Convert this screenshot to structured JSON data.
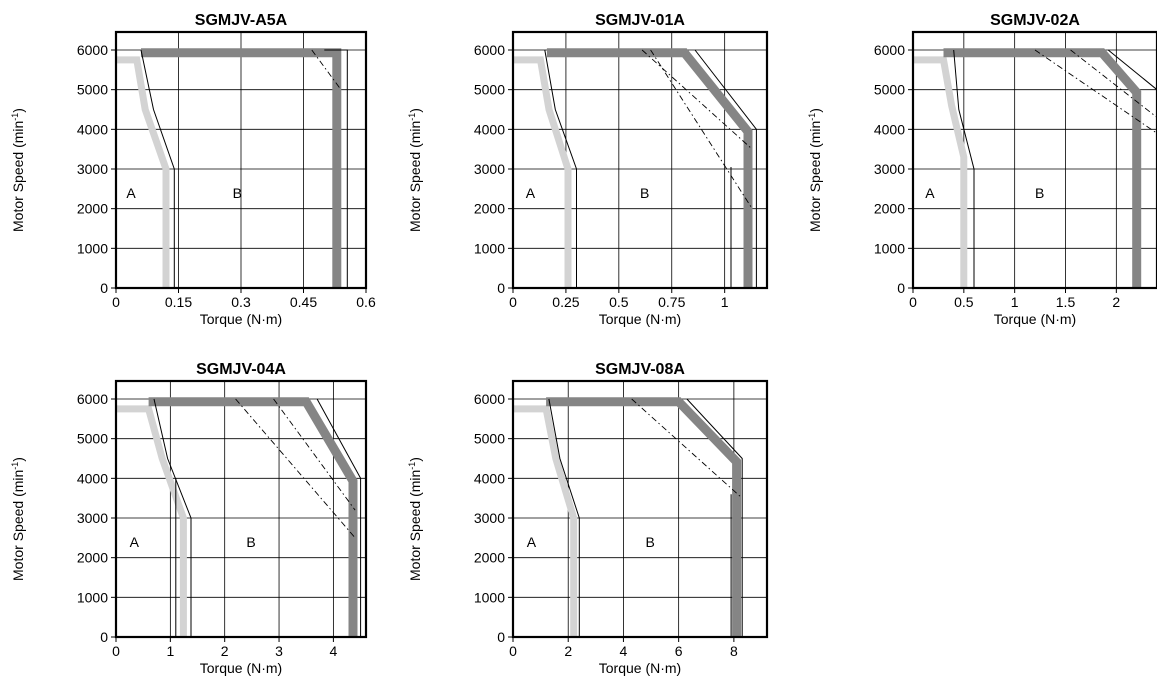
{
  "chart_data": [
    {
      "type": "line",
      "title": "SGMJV-A5A",
      "xlabel": "Torque (N·m)",
      "ylabel_base": "Motor Speed (min",
      "ylabel_sup": "-1",
      "ylabel_end": ")",
      "xlim": [
        0,
        0.6
      ],
      "ylim": [
        0,
        6000
      ],
      "x_ticks": [
        "0",
        "0.15",
        "0.3",
        "0.45",
        "0.6"
      ],
      "x_tick_values": [
        0,
        0.15,
        0.3,
        0.45,
        0.6
      ],
      "x_grid": [
        0.15,
        0.3,
        0.45,
        0.6
      ],
      "y_ticks": [
        "0",
        "1000",
        "2000",
        "3000",
        "4000",
        "5000",
        "6000"
      ],
      "y_tick_values": [
        0,
        1000,
        2000,
        3000,
        4000,
        5000,
        6000
      ],
      "regions": [
        {
          "label": "A",
          "x": 0.025,
          "y": 2400
        },
        {
          "label": "B",
          "x": 0.28,
          "y": 2400
        }
      ],
      "series": [
        {
          "style": "continuous-band",
          "points": [
            [
              0.12,
              0
            ],
            [
              0.12,
              3000
            ],
            [
              0.07,
              4500
            ],
            [
              0.05,
              5750
            ],
            [
              0,
              5750
            ]
          ]
        },
        {
          "style": "instantaneous-band",
          "points": [
            [
              0.06,
              5930
            ],
            [
              0.53,
              5930
            ],
            [
              0.53,
              0
            ]
          ]
        },
        {
          "style": "thin",
          "points": [
            [
              0.14,
              0
            ],
            [
              0.14,
              3000
            ],
            [
              0.09,
              4500
            ],
            [
              0.06,
              6000
            ]
          ]
        },
        {
          "style": "thin",
          "points": [
            [
              0.5,
              6000
            ],
            [
              0.555,
              6000
            ],
            [
              0.555,
              0
            ]
          ]
        },
        {
          "style": "dash",
          "points": [
            [
              0.47,
              6000
            ],
            [
              0.54,
              5000
            ]
          ]
        }
      ]
    },
    {
      "type": "line",
      "title": "SGMJV-01A",
      "xlabel": "Torque (N·m)",
      "ylabel_base": "Motor Speed (min",
      "ylabel_sup": "-1",
      "ylabel_end": ")",
      "xlim": [
        0,
        1.2
      ],
      "ylim": [
        0,
        6000
      ],
      "x_ticks": [
        "0",
        "0.25",
        "0.5",
        "0.75",
        "1"
      ],
      "x_tick_values": [
        0,
        0.25,
        0.5,
        0.75,
        1
      ],
      "x_grid": [
        0.25,
        0.5,
        0.75,
        1
      ],
      "y_ticks": [
        "0",
        "1000",
        "2000",
        "3000",
        "4000",
        "5000",
        "6000"
      ],
      "y_tick_values": [
        0,
        1000,
        2000,
        3000,
        4000,
        5000,
        6000
      ],
      "regions": [
        {
          "label": "A",
          "x": 0.06,
          "y": 2400
        },
        {
          "label": "B",
          "x": 0.6,
          "y": 2400
        }
      ],
      "series": [
        {
          "style": "continuous-band",
          "points": [
            [
              0.26,
              0
            ],
            [
              0.26,
              3000
            ],
            [
              0.17,
              4500
            ],
            [
              0.13,
              5750
            ],
            [
              0,
              5750
            ]
          ]
        },
        {
          "style": "instantaneous-band",
          "points": [
            [
              0.16,
              5930
            ],
            [
              0.81,
              5930
            ],
            [
              1.11,
              3940
            ],
            [
              1.11,
              0
            ]
          ]
        },
        {
          "style": "thin",
          "points": [
            [
              0.3,
              0
            ],
            [
              0.3,
              3000
            ],
            [
              0.2,
              4500
            ],
            [
              0.15,
              6000
            ]
          ]
        },
        {
          "style": "thin",
          "points": [
            [
              0.86,
              6000
            ],
            [
              1.15,
              4000
            ],
            [
              1.15,
              0
            ]
          ]
        },
        {
          "style": "thin",
          "points": [
            [
              1.03,
              0
            ],
            [
              1.03,
              3050
            ]
          ]
        },
        {
          "style": "dash",
          "points": [
            [
              0.61,
              6000
            ],
            [
              1.13,
              3500
            ]
          ]
        },
        {
          "style": "dash",
          "points": [
            [
              0.65,
              6000
            ],
            [
              1.13,
              2000
            ]
          ]
        }
      ]
    },
    {
      "type": "line",
      "title": "SGMJV-02A",
      "xlabel": "Torque (N·m)",
      "ylabel_base": "Motor Speed (min",
      "ylabel_sup": "-1",
      "ylabel_end": ")",
      "xlim": [
        0,
        2.4
      ],
      "ylim": [
        0,
        6000
      ],
      "x_ticks": [
        "0",
        "0.5",
        "1",
        "1.5",
        "2"
      ],
      "x_tick_values": [
        0,
        0.5,
        1,
        1.5,
        2
      ],
      "x_grid": [
        0.5,
        1,
        1.5,
        2
      ],
      "y_ticks": [
        "0",
        "1000",
        "2000",
        "3000",
        "4000",
        "5000",
        "6000"
      ],
      "y_tick_values": [
        0,
        1000,
        2000,
        3000,
        4000,
        5000,
        6000
      ],
      "regions": [
        {
          "label": "A",
          "x": 0.12,
          "y": 2400
        },
        {
          "label": "B",
          "x": 1.2,
          "y": 2400
        }
      ],
      "series": [
        {
          "style": "continuous-band",
          "points": [
            [
              0.5,
              0
            ],
            [
              0.5,
              3300
            ],
            [
              0.38,
              4600
            ],
            [
              0.3,
              5750
            ],
            [
              0,
              5750
            ]
          ]
        },
        {
          "style": "instantaneous-band",
          "points": [
            [
              0.3,
              5930
            ],
            [
              1.86,
              5930
            ],
            [
              2.2,
              4930
            ],
            [
              2.2,
              0
            ]
          ]
        },
        {
          "style": "thin",
          "points": [
            [
              0.6,
              0
            ],
            [
              0.6,
              3000
            ],
            [
              0.45,
              4500
            ],
            [
              0.4,
              6000
            ]
          ]
        },
        {
          "style": "thin",
          "points": [
            [
              1.92,
              6000
            ],
            [
              2.4,
              5000
            ]
          ]
        },
        {
          "style": "dash",
          "points": [
            [
              1.2,
              6000
            ],
            [
              2.4,
              3900
            ]
          ]
        },
        {
          "style": "dash",
          "points": [
            [
              1.55,
              6000
            ],
            [
              2.4,
              4300
            ]
          ]
        }
      ]
    },
    {
      "type": "line",
      "title": "SGMJV-04A",
      "xlabel": "Torque (N·m)",
      "ylabel_base": "Motor Speed (min",
      "ylabel_sup": "-1",
      "ylabel_end": ")",
      "xlim": [
        0,
        4.6
      ],
      "ylim": [
        0,
        6000
      ],
      "x_ticks": [
        "0",
        "1",
        "2",
        "3",
        "4"
      ],
      "x_tick_values": [
        0,
        1,
        2,
        3,
        4
      ],
      "x_grid": [
        1,
        2,
        3,
        4
      ],
      "y_ticks": [
        "0",
        "1000",
        "2000",
        "3000",
        "4000",
        "5000",
        "6000"
      ],
      "y_tick_values": [
        0,
        1000,
        2000,
        3000,
        4000,
        5000,
        6000
      ],
      "regions": [
        {
          "label": "A",
          "x": 0.25,
          "y": 2400
        },
        {
          "label": "B",
          "x": 2.4,
          "y": 2400
        }
      ],
      "series": [
        {
          "style": "continuous-band",
          "points": [
            [
              1.24,
              0
            ],
            [
              1.24,
              3000
            ],
            [
              0.85,
              4500
            ],
            [
              0.6,
              5750
            ],
            [
              0,
              5750
            ]
          ]
        },
        {
          "style": "instantaneous-band",
          "points": [
            [
              0.6,
              5930
            ],
            [
              3.5,
              5930
            ],
            [
              4.36,
              3930
            ],
            [
              4.36,
              0
            ]
          ]
        },
        {
          "style": "thin",
          "points": [
            [
              1.38,
              0
            ],
            [
              1.38,
              3000
            ],
            [
              0.95,
              4500
            ],
            [
              0.7,
              6000
            ]
          ]
        },
        {
          "style": "thin",
          "points": [
            [
              3.7,
              6000
            ],
            [
              4.5,
              4000
            ],
            [
              4.5,
              0
            ]
          ]
        },
        {
          "style": "thin",
          "points": [
            [
              1.1,
              0
            ],
            [
              1.1,
              4000
            ]
          ]
        },
        {
          "style": "dash",
          "points": [
            [
              2.2,
              6000
            ],
            [
              4.4,
              2500
            ]
          ]
        },
        {
          "style": "dash",
          "points": [
            [
              2.9,
              6000
            ],
            [
              4.4,
              3200
            ]
          ]
        }
      ]
    },
    {
      "type": "line",
      "title": "SGMJV-08A",
      "xlabel": "Torque (N·m)",
      "ylabel_base": "Motor Speed (min",
      "ylabel_sup": "-1",
      "ylabel_end": ")",
      "xlim": [
        0,
        9.2
      ],
      "ylim": [
        0,
        6000
      ],
      "x_ticks": [
        "0",
        "2",
        "4",
        "6",
        "8"
      ],
      "x_tick_values": [
        0,
        2,
        4,
        6,
        8
      ],
      "x_grid": [
        2,
        4,
        6,
        8
      ],
      "y_ticks": [
        "0",
        "1000",
        "2000",
        "3000",
        "4000",
        "5000",
        "6000"
      ],
      "y_tick_values": [
        0,
        1000,
        2000,
        3000,
        4000,
        5000,
        6000
      ],
      "regions": [
        {
          "label": "A",
          "x": 0.5,
          "y": 2400
        },
        {
          "label": "B",
          "x": 4.8,
          "y": 2400
        }
      ],
      "series": [
        {
          "style": "continuous-band",
          "points": [
            [
              2.2,
              0
            ],
            [
              2.2,
              3000
            ],
            [
              1.55,
              4500
            ],
            [
              1.2,
              5750
            ],
            [
              0,
              5750
            ]
          ]
        },
        {
          "style": "instantaneous-band",
          "points": [
            [
              1.2,
              5930
            ],
            [
              6.0,
              5930
            ],
            [
              8.1,
              4420
            ],
            [
              8.1,
              0
            ]
          ]
        },
        {
          "style": "thin",
          "points": [
            [
              2.4,
              0
            ],
            [
              2.4,
              3000
            ],
            [
              1.7,
              4500
            ],
            [
              1.3,
              6000
            ]
          ]
        },
        {
          "style": "thin",
          "points": [
            [
              6.3,
              6000
            ],
            [
              8.3,
              4500
            ],
            [
              8.3,
              0
            ]
          ]
        },
        {
          "style": "thin",
          "points": [
            [
              7.9,
              0
            ],
            [
              7.9,
              3600
            ]
          ]
        },
        {
          "style": "dash",
          "points": [
            [
              4.3,
              6000
            ],
            [
              8.3,
              3500
            ]
          ]
        }
      ]
    }
  ]
}
